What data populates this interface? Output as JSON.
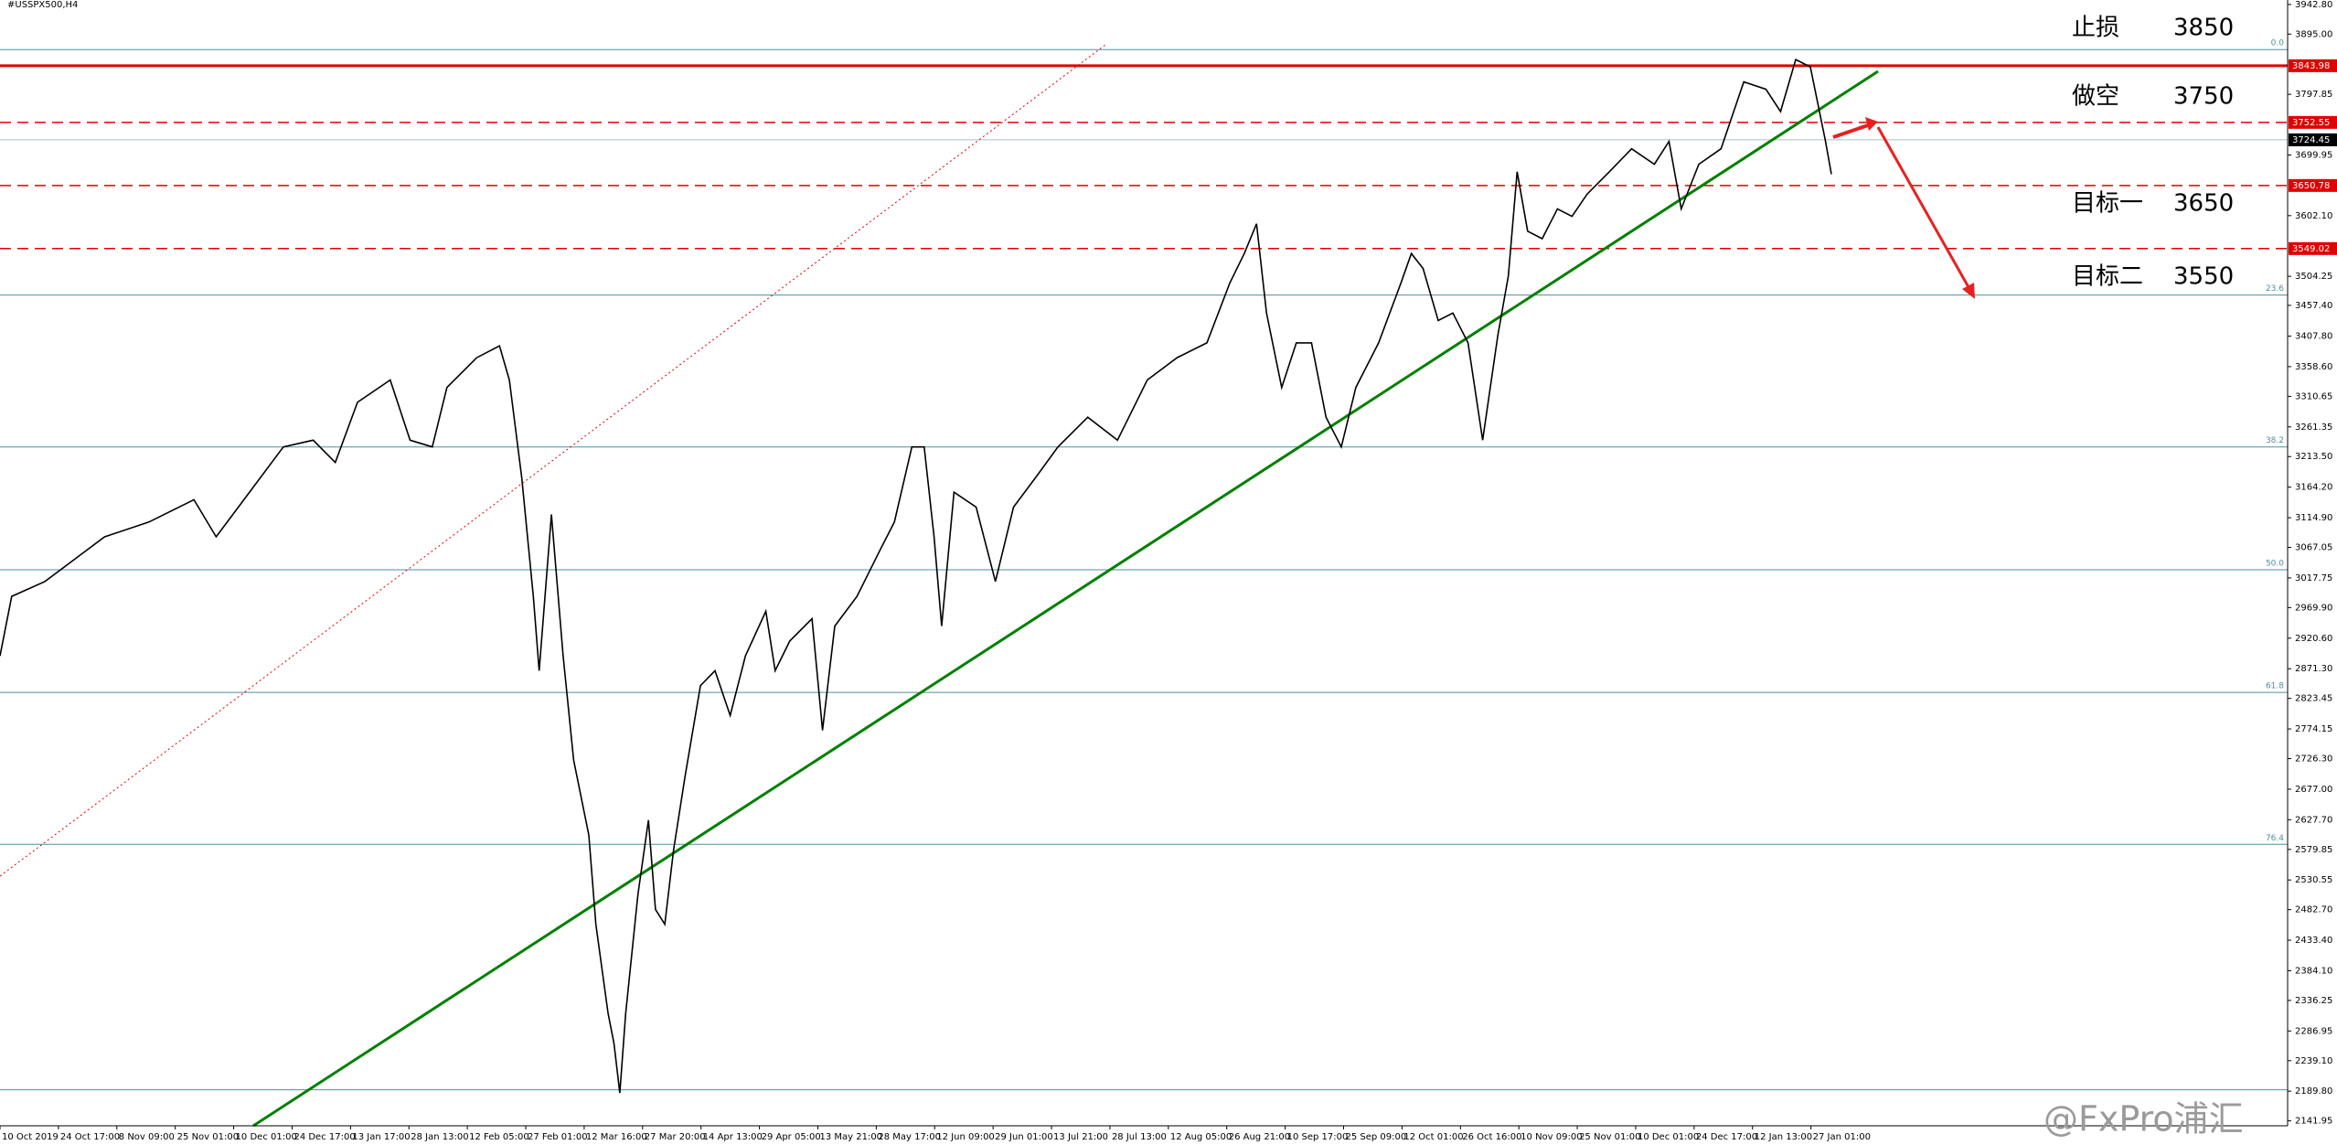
{
  "chart_data": {
    "type": "line",
    "title": "#USSPX500,H4",
    "color": "#000000",
    "x": [
      0,
      0.2,
      0.77,
      1.28,
      1.79,
      2.55,
      3.32,
      3.7,
      4.08,
      4.85,
      5.36,
      5.74,
      6.12,
      6.68,
      7.02,
      7.4,
      7.65,
      8.16,
      8.55,
      8.72,
      8.93,
      9.13,
      9.23,
      9.44,
      9.64,
      9.82,
      10.08,
      10.2,
      10.41,
      10.51,
      10.61,
      10.71,
      10.92,
      11.1,
      11.22,
      11.38,
      11.53,
      11.73,
      11.99,
      12.24,
      12.5,
      12.76,
      13.11,
      13.27,
      13.52,
      13.9,
      14.08,
      14.29,
      14.67,
      15.05,
      15.31,
      15.61,
      15.82,
      15.99,
      16.12,
      16.33,
      16.71,
      17.04,
      17.35,
      17.73,
      18.11,
      18.62,
      19.13,
      19.64,
      20.15,
      20.66,
      21.05,
      21.3,
      21.51,
      21.68,
      21.94,
      22.19,
      22.45,
      22.7,
      22.96,
      23.21,
      23.6,
      23.98,
      24.16,
      24.36,
      24.62,
      24.87,
      25.13,
      25.38,
      25.64,
      25.82,
      25.97,
      26.15,
      26.4,
      26.66,
      26.91,
      27.17,
      27.55,
      27.93,
      28.32,
      28.57,
      28.78,
      29.08,
      29.46,
      29.85,
      30.23,
      30.48,
      30.74,
      30.99,
      31.12,
      31.25,
      31.35
    ],
    "values": [
      2892,
      2988,
      3012,
      3048,
      3084,
      3108,
      3144,
      3084,
      3132,
      3229,
      3240,
      3204,
      3301,
      3337,
      3240,
      3229,
      3325,
      3373,
      3392,
      3337,
      3180,
      2988,
      2868,
      3120,
      2892,
      2724,
      2603,
      2459,
      2315,
      2267,
      2187,
      2315,
      2507,
      2627,
      2483,
      2459,
      2579,
      2699,
      2844,
      2868,
      2796,
      2892,
      2964,
      2868,
      2916,
      2952,
      2772,
      2940,
      2988,
      3060,
      3108,
      3229,
      3229,
      3084,
      2940,
      3156,
      3132,
      3012,
      3132,
      3180,
      3229,
      3277,
      3240,
      3337,
      3373,
      3397,
      3493,
      3541,
      3589,
      3445,
      3325,
      3397,
      3397,
      3277,
      3229,
      3325,
      3397,
      3493,
      3541,
      3517,
      3433,
      3445,
      3397,
      3240,
      3409,
      3505,
      3673,
      3577,
      3565,
      3613,
      3601,
      3637,
      3673,
      3710,
      3685,
      3722,
      3613,
      3685,
      3710,
      3818,
      3806,
      3770,
      3854,
      3842,
      3782,
      3722,
      3669
    ],
    "xlim": [
      0,
      39.16
    ],
    "ylim": [
      2134,
      3950
    ],
    "xticks": [
      {
        "value": 0,
        "label": "10 Oct 2019"
      },
      {
        "value": 1,
        "label": "24 Oct 17:00"
      },
      {
        "value": 2,
        "label": "8 Nov 09:00"
      },
      {
        "value": 3,
        "label": "25 Nov 01:00"
      },
      {
        "value": 4,
        "label": "10 Dec 01:00"
      },
      {
        "value": 5,
        "label": "24 Dec 17:00"
      },
      {
        "value": 6,
        "label": "13 Jan 17:00"
      },
      {
        "value": 7,
        "label": "28 Jan 13:00"
      },
      {
        "value": 8,
        "label": "12 Feb 05:00"
      },
      {
        "value": 9,
        "label": "27 Feb 01:00"
      },
      {
        "value": 10,
        "label": "12 Mar 16:00"
      },
      {
        "value": 11,
        "label": "27 Mar 20:00"
      },
      {
        "value": 12,
        "label": "14 Apr 13:00"
      },
      {
        "value": 13,
        "label": "29 Apr 05:00"
      },
      {
        "value": 14,
        "label": "13 May 21:00"
      },
      {
        "value": 15,
        "label": "28 May 17:00"
      },
      {
        "value": 16,
        "label": "12 Jun 09:00"
      },
      {
        "value": 17,
        "label": "29 Jun 01:00"
      },
      {
        "value": 18,
        "label": "13 Jul 21:00"
      },
      {
        "value": 19,
        "label": "28 Jul 13:00"
      },
      {
        "value": 20,
        "label": "12 Aug 05:00"
      },
      {
        "value": 21,
        "label": "26 Aug 21:00"
      },
      {
        "value": 22,
        "label": "10 Sep 17:00"
      },
      {
        "value": 23,
        "label": "25 Sep 09:00"
      },
      {
        "value": 24,
        "label": "12 Oct 01:00"
      },
      {
        "value": 25,
        "label": "26 Oct 16:00"
      },
      {
        "value": 26,
        "label": "10 Nov 09:00"
      },
      {
        "value": 27,
        "label": "25 Nov 01:00"
      },
      {
        "value": 28,
        "label": "10 Dec 01:00"
      },
      {
        "value": 29,
        "label": "24 Dec 17:00"
      },
      {
        "value": 30,
        "label": "12 Jan 13:00"
      },
      {
        "value": 31,
        "label": "27 Jan 01:00"
      }
    ],
    "yticks": [
      {
        "value": 3942.8,
        "label": "3942.80"
      },
      {
        "value": 3895,
        "label": "3895.00"
      },
      3797.85,
      3699.95,
      {
        "value": 3602.1,
        "label": "3602.10"
      },
      3504.25,
      {
        "value": 3457.4,
        "label": "3457.40"
      },
      {
        "value": 3407.8,
        "label": "3407.80"
      },
      {
        "value": 3358.6,
        "label": "3358.60"
      },
      3310.65,
      3261.35,
      {
        "value": 3213.5,
        "label": "3213.50"
      },
      {
        "value": 3164.2,
        "label": "3164.20"
      },
      {
        "value": 3114.9,
        "label": "3114.90"
      },
      3067.05,
      3017.75,
      {
        "value": 2969.9,
        "label": "2969.90"
      },
      {
        "value": 2920.6,
        "label": "2920.60"
      },
      {
        "value": 2871.3,
        "label": "2871.30"
      },
      2823.45,
      2774.15,
      {
        "value": 2726.3,
        "label": "2726.30"
      },
      {
        "value": 2677,
        "label": "2677.00"
      },
      {
        "value": 2627.7,
        "label": "2627.70"
      },
      2579.85,
      2530.55,
      {
        "value": 2482.7,
        "label": "2482.70"
      },
      {
        "value": 2433.4,
        "label": "2433.40"
      },
      {
        "value": 2384.1,
        "label": "2384.10"
      },
      2336.25,
      2286.95,
      {
        "value": 2239.1,
        "label": "2239.10"
      },
      {
        "value": 2189.8,
        "label": "2189.80"
      },
      2141.95
    ],
    "price_levels": [
      {
        "value": 3843.98,
        "color": "#e00000",
        "style": "solid"
      },
      {
        "value": 3752.55,
        "color": "#e00000",
        "style": "dashed"
      },
      {
        "value": 3724.45,
        "color": "#000000",
        "style": "current"
      },
      {
        "value": 3650.78,
        "color": "#e00000",
        "style": "dashed"
      },
      {
        "value": 3549.02,
        "color": "#e00000",
        "style": "dashed"
      }
    ],
    "fib_levels": [
      {
        "value": 3870,
        "label": "0.0"
      },
      {
        "value": 3474,
        "label": "23.6"
      },
      {
        "value": 3229,
        "label": "38.2"
      },
      {
        "value": 3031,
        "label": "50.0"
      },
      {
        "value": 2833,
        "label": "61.8"
      },
      {
        "value": 2588,
        "label": "76.4"
      },
      {
        "value": 2192
      }
    ],
    "fib_color": "#4f8f9f",
    "annotations": [
      {
        "label": "止损",
        "value": 3850
      },
      {
        "label": "做空",
        "value": 3750
      },
      {
        "label": "目标一",
        "value": 3650
      },
      {
        "label": "目标二",
        "value": 3550
      }
    ],
    "watermark": "@FxPro浦汇"
  }
}
